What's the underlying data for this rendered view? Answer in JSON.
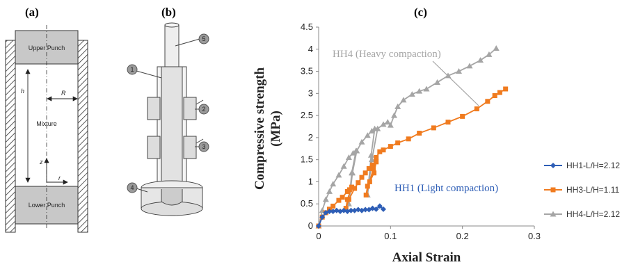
{
  "panels": {
    "a": "(a)",
    "b": "(b)",
    "c": "(c)"
  },
  "diagram_a": {
    "upper": "Upper Punch",
    "lower": "Lower Punch",
    "mixture": "Mixture",
    "h": "h",
    "R": "R",
    "z": "z",
    "r": "r"
  },
  "diagram_b": {
    "labels": [
      "1",
      "5",
      "2",
      "3",
      "4"
    ]
  },
  "chart_data": {
    "type": "line",
    "xlabel": "Axial Strain",
    "ylabel": "Compressive strength (MPa)",
    "ylabel_line1": "Compressive strength",
    "ylabel_line2": "(MPa)",
    "xlim": [
      0,
      0.3
    ],
    "ylim": [
      0,
      4.5
    ],
    "xticks": [
      "0",
      "0.1",
      "0.2",
      "0.3"
    ],
    "yticks": [
      "0",
      "0.5",
      "1",
      "1.5",
      "2",
      "2.5",
      "3",
      "3.5",
      "4",
      "4.5"
    ],
    "grid": false,
    "legend_position": "right",
    "annotations": [
      "HH4 (Heavy compaction)",
      "HH1 (Light compaction)"
    ],
    "series": [
      {
        "name": "HH1-L/H=2.12",
        "color": "#2e5eb6",
        "marker": "diamond",
        "x": [
          0,
          0.005,
          0.01,
          0.015,
          0.02,
          0.025,
          0.03,
          0.035,
          0.04,
          0.045,
          0.05,
          0.055,
          0.06,
          0.065,
          0.07,
          0.075,
          0.08,
          0.085,
          0.09
        ],
        "y": [
          0,
          0.2,
          0.3,
          0.33,
          0.33,
          0.35,
          0.33,
          0.35,
          0.33,
          0.35,
          0.35,
          0.37,
          0.35,
          0.37,
          0.37,
          0.4,
          0.38,
          0.45,
          0.38
        ]
      },
      {
        "name": "HH3-L/H=1.11",
        "color": "#f07b1f",
        "marker": "square",
        "x": [
          0,
          0.005,
          0.01,
          0.015,
          0.02,
          0.028,
          0.033,
          0.04,
          0.043,
          0.046,
          0.04,
          0.038,
          0.042,
          0.05,
          0.055,
          0.06,
          0.065,
          0.07,
          0.075,
          0.08,
          0.077,
          0.068,
          0.066,
          0.071,
          0.076,
          0.08,
          0.085,
          0.09,
          0.1,
          0.11,
          0.125,
          0.14,
          0.16,
          0.18,
          0.2,
          0.22,
          0.235,
          0.245,
          0.252,
          0.26
        ],
        "y": [
          0,
          0.2,
          0.3,
          0.38,
          0.45,
          0.58,
          0.65,
          0.78,
          0.82,
          0.88,
          0.6,
          0.4,
          0.6,
          0.85,
          0.98,
          1.1,
          1.2,
          1.3,
          1.38,
          1.45,
          1.2,
          0.9,
          0.7,
          1.0,
          1.3,
          1.55,
          1.68,
          1.72,
          1.8,
          1.88,
          1.97,
          2.1,
          2.22,
          2.35,
          2.48,
          2.65,
          2.82,
          2.95,
          3.02,
          3.1
        ]
      },
      {
        "name": "HH4-L/H=2.12",
        "color": "#a5a5a5",
        "marker": "triangle",
        "x": [
          0,
          0.005,
          0.01,
          0.015,
          0.02,
          0.028,
          0.035,
          0.042,
          0.048,
          0.052,
          0.046,
          0.042,
          0.047,
          0.053,
          0.06,
          0.068,
          0.074,
          0.078,
          0.073,
          0.068,
          0.074,
          0.082,
          0.09,
          0.096,
          0.1,
          0.105,
          0.11,
          0.118,
          0.13,
          0.14,
          0.15,
          0.165,
          0.18,
          0.195,
          0.21,
          0.225,
          0.237,
          0.247
        ],
        "y": [
          0,
          0.35,
          0.6,
          0.78,
          0.95,
          1.15,
          1.35,
          1.55,
          1.65,
          1.7,
          1.2,
          0.5,
          1.2,
          1.7,
          1.9,
          2.05,
          2.15,
          2.2,
          1.6,
          0.7,
          1.5,
          2.2,
          2.3,
          2.35,
          2.28,
          2.5,
          2.7,
          2.85,
          2.98,
          3.05,
          3.1,
          3.25,
          3.4,
          3.5,
          3.62,
          3.75,
          3.88,
          4.02
        ]
      }
    ]
  }
}
